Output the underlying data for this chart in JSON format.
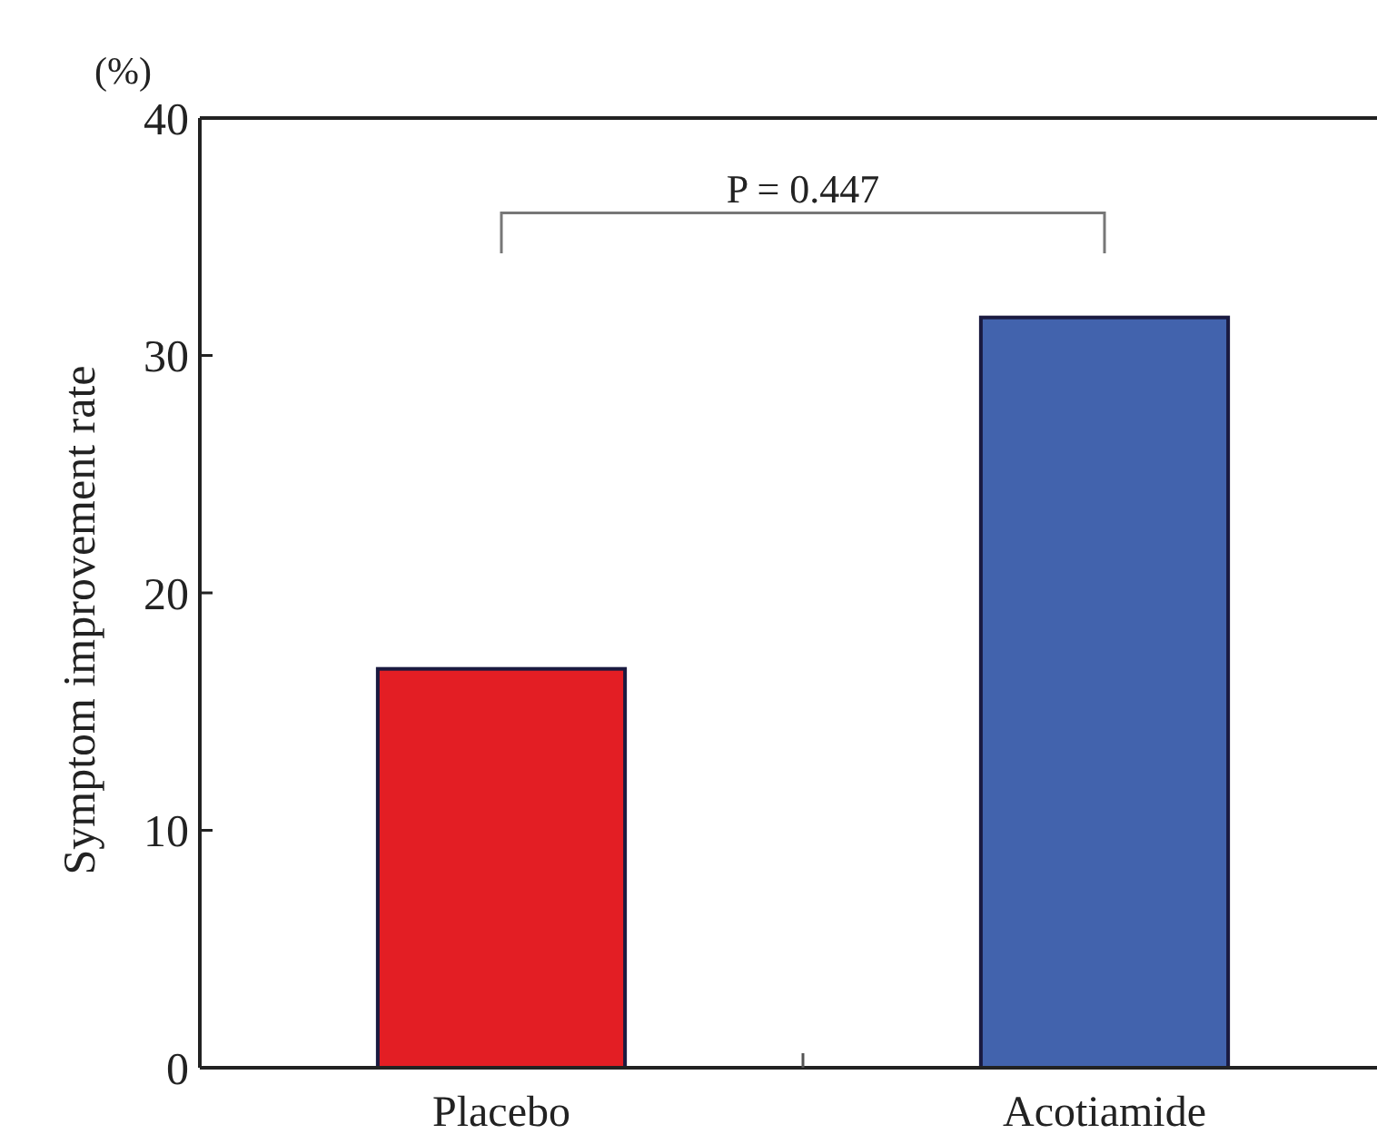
{
  "chart_data": {
    "type": "bar",
    "ylabel": "Symptom improvement rate",
    "categories": [
      "Placebo",
      "Acotiamide"
    ],
    "values": [
      16.8,
      31.6
    ],
    "colors": [
      "#e31e24",
      "#4263ad"
    ],
    "ylim": [
      0,
      40
    ],
    "yticks": [
      0,
      10,
      20,
      30,
      40
    ],
    "annotations": [
      "(%)",
      "P = 0.447"
    ]
  }
}
